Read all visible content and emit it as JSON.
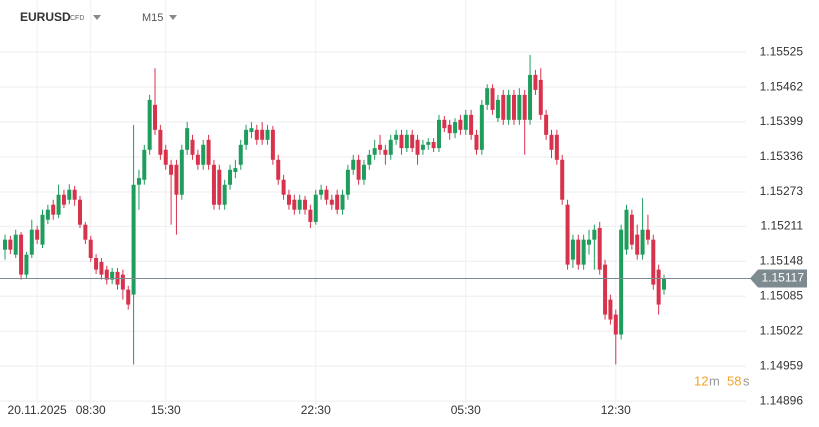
{
  "header": {
    "symbol": "EURUSD",
    "instrument": "CFD",
    "timeframe": "M15"
  },
  "countdown": [
    "12",
    "m",
    "58",
    "s"
  ],
  "chart_data": {
    "type": "candlestick",
    "categories": [
      null,
      null,
      null,
      null,
      null,
      null,
      "20.11.2025",
      null,
      null,
      null,
      null,
      null,
      null,
      null,
      null,
      null,
      "08:30",
      null,
      null,
      null,
      null,
      null,
      null,
      null,
      null,
      null,
      null,
      null,
      null,
      null,
      "15:30",
      null,
      null,
      null,
      null,
      null,
      null,
      null,
      null,
      null,
      null,
      null,
      null,
      null,
      null,
      null,
      null,
      null,
      null,
      null,
      null,
      null,
      null,
      null,
      null,
      null,
      null,
      null,
      "22:30",
      null,
      null,
      null,
      null,
      null,
      null,
      null,
      null,
      null,
      null,
      null,
      null,
      null,
      null,
      null,
      null,
      null,
      null,
      null,
      null,
      null,
      null,
      null,
      null,
      null,
      null,
      null,
      "05:30",
      null,
      null,
      null,
      null,
      null,
      null,
      null,
      null,
      null,
      null,
      null,
      null,
      null,
      null,
      null,
      null,
      null,
      null,
      null,
      null,
      null,
      null,
      null,
      null,
      null,
      null,
      null,
      "12:30",
      null,
      null,
      null,
      null,
      null,
      null,
      null,
      null,
      null
    ],
    "open": [
      1.15169,
      1.15187,
      1.1516,
      1.15196,
      1.15124,
      1.1516,
      1.15205,
      1.15178,
      1.15223,
      1.1525,
      1.15232,
      1.15268,
      1.15259,
      1.15277,
      1.15259,
      1.15214,
      1.15187,
      1.15154,
      1.15147,
      1.15133,
      1.15115,
      1.15129,
      1.15124,
      1.15097,
      1.15088,
      1.15286,
      1.15295,
      1.15349,
      1.1543,
      1.15385,
      1.15349,
      1.15322,
      1.15322,
      1.15268,
      1.15349,
      1.15367,
      1.1534,
      1.15322,
      1.15367,
      1.15322,
      1.15313,
      1.1525,
      1.15286,
      1.15309,
      1.15322,
      1.15358,
      1.15381,
      1.15385,
      1.15385,
      1.15367,
      1.15385,
      1.15331,
      1.15295,
      1.15268,
      1.15259,
      1.15241,
      1.15259,
      1.15241,
      1.15219,
      1.15268,
      1.15277,
      1.15259,
      1.15268,
      1.15241,
      1.15268,
      1.15313,
      1.15331,
      1.15295,
      1.15322,
      1.1534,
      1.15358,
      1.15349,
      1.1534,
      1.15367,
      1.15376,
      1.15352,
      1.15376,
      1.15367,
      1.15349,
      1.15358,
      1.15363,
      1.15352,
      1.15403,
      1.15394,
      1.15379,
      1.15403,
      1.15385,
      1.15412,
      1.15376,
      1.15349,
      1.1543,
      1.1546,
      1.15406,
      1.15448,
      1.15403,
      1.15448,
      1.15403,
      1.15448,
      1.15403,
      1.15484,
      1.15475,
      1.15412,
      1.15376,
      1.15376,
      1.15331,
      1.1525,
      1.15151,
      1.15187,
      1.15142,
      1.15178,
      1.15187,
      1.15208,
      1.15142,
      1.15079,
      1.15052,
      1.15016,
      1.15169,
      1.15232,
      1.15196,
      1.1516,
      1.15205,
      1.15187,
      1.15133,
      1.15097
    ],
    "high": [
      1.15196,
      1.15194,
      1.15205,
      1.15201,
      1.15165,
      1.15223,
      1.15212,
      1.15241,
      1.1525,
      1.15259,
      1.15286,
      1.15277,
      1.15287,
      1.15284,
      1.15266,
      1.15219,
      1.15194,
      1.15161,
      1.15154,
      1.1514,
      1.15136,
      1.15136,
      1.15133,
      1.15104,
      1.15394,
      1.15313,
      1.15358,
      1.15448,
      1.15496,
      1.15394,
      1.15358,
      1.15331,
      1.15331,
      1.15358,
      1.15399,
      1.15376,
      1.15349,
      1.15367,
      1.15376,
      1.15331,
      1.15322,
      1.15295,
      1.15322,
      1.15331,
      1.15367,
      1.15394,
      1.15399,
      1.15394,
      1.15399,
      1.15394,
      1.15392,
      1.1534,
      1.15304,
      1.15277,
      1.15268,
      1.15268,
      1.15266,
      1.1525,
      1.15277,
      1.15286,
      1.15284,
      1.15268,
      1.15277,
      1.15277,
      1.15322,
      1.1534,
      1.1534,
      1.15331,
      1.15349,
      1.15367,
      1.15376,
      1.15358,
      1.15376,
      1.15385,
      1.15385,
      1.15385,
      1.15385,
      1.15376,
      1.15367,
      1.1537,
      1.1537,
      1.15412,
      1.1541,
      1.15403,
      1.15406,
      1.15412,
      1.15421,
      1.15421,
      1.15385,
      1.15439,
      1.15467,
      1.15467,
      1.15448,
      1.15457,
      1.15457,
      1.15457,
      1.1546,
      1.15457,
      1.1552,
      1.15493,
      1.15496,
      1.15421,
      1.15385,
      1.15385,
      1.1534,
      1.15259,
      1.15196,
      1.15196,
      1.15196,
      1.15205,
      1.15214,
      1.15219,
      1.15151,
      1.15088,
      1.15061,
      1.15214,
      1.1525,
      1.15241,
      1.15214,
      1.15262,
      1.15232,
      1.15196,
      1.15142,
      1.15124
    ],
    "low": [
      1.15151,
      1.15161,
      1.15154,
      1.15115,
      1.15118,
      1.15154,
      1.15179,
      1.15172,
      1.15215,
      1.15223,
      1.15226,
      1.15244,
      1.15251,
      1.15248,
      1.15208,
      1.15179,
      1.15147,
      1.15125,
      1.15115,
      1.15106,
      1.15107,
      1.15097,
      1.15079,
      1.15061,
      1.14962,
      1.15241,
      1.15286,
      1.1534,
      1.15376,
      1.15331,
      1.15313,
      1.15214,
      1.15196,
      1.15259,
      1.1534,
      1.15331,
      1.15313,
      1.15313,
      1.15313,
      1.15241,
      1.15241,
      1.15241,
      1.15277,
      1.15298,
      1.15313,
      1.15349,
      1.1537,
      1.15358,
      1.15358,
      1.15358,
      1.15322,
      1.15286,
      1.15259,
      1.15241,
      1.15232,
      1.15233,
      1.15232,
      1.15208,
      1.15214,
      1.15259,
      1.1525,
      1.15241,
      1.15233,
      1.15232,
      1.15259,
      1.15304,
      1.15286,
      1.15286,
      1.15313,
      1.15331,
      1.1534,
      1.15322,
      1.15331,
      1.15358,
      1.1534,
      1.15345,
      1.15345,
      1.15322,
      1.1534,
      1.15349,
      1.15345,
      1.15345,
      1.15381,
      1.15367,
      1.1537,
      1.15376,
      1.15376,
      1.15367,
      1.1534,
      1.1534,
      1.15421,
      1.15412,
      1.15399,
      1.15394,
      1.15394,
      1.15394,
      1.15394,
      1.1534,
      1.15394,
      1.15448,
      1.15403,
      1.15367,
      1.15334,
      1.15322,
      1.1525,
      1.15133,
      1.15136,
      1.15133,
      1.15133,
      1.1516,
      1.15133,
      1.15124,
      1.15043,
      1.15034,
      1.14962,
      1.15007,
      1.1516,
      1.15169,
      1.15151,
      1.15151,
      1.15178,
      1.15097,
      1.15052,
      1.15088
    ],
    "close": [
      1.15187,
      1.15169,
      1.15196,
      1.15124,
      1.1516,
      1.15205,
      1.15187,
      1.15232,
      1.15241,
      1.15232,
      1.15268,
      1.1525,
      1.15277,
      1.15259,
      1.15214,
      1.15187,
      1.15154,
      1.15133,
      1.15124,
      1.15115,
      1.15129,
      1.15106,
      1.15097,
      1.1507,
      1.15286,
      1.15298,
      1.15349,
      1.15439,
      1.15385,
      1.1534,
      1.15322,
      1.15304,
      1.15268,
      1.15349,
      1.15388,
      1.1534,
      1.15322,
      1.15358,
      1.15322,
      1.1525,
      1.1525,
      1.15286,
      1.15313,
      1.15316,
      1.15358,
      1.15385,
      1.15388,
      1.15367,
      1.15367,
      1.15385,
      1.15331,
      1.15295,
      1.15268,
      1.1525,
      1.15241,
      1.15259,
      1.15241,
      1.15219,
      1.15268,
      1.15277,
      1.15259,
      1.1525,
      1.15241,
      1.15268,
      1.15313,
      1.15331,
      1.15295,
      1.15322,
      1.1534,
      1.15352,
      1.15349,
      1.1534,
      1.15367,
      1.15376,
      1.15352,
      1.15376,
      1.15352,
      1.1534,
      1.15358,
      1.15363,
      1.15352,
      1.15403,
      1.15388,
      1.15379,
      1.15399,
      1.15385,
      1.15412,
      1.15376,
      1.15349,
      1.1543,
      1.1546,
      1.15421,
      1.15439,
      1.15403,
      1.15448,
      1.15403,
      1.15448,
      1.15403,
      1.15484,
      1.15457,
      1.15412,
      1.15376,
      1.15349,
      1.15331,
      1.15259,
      1.15142,
      1.15187,
      1.15142,
      1.15187,
      1.15187,
      1.15205,
      1.15133,
      1.15052,
      1.15043,
      1.15016,
      1.15205,
      1.15241,
      1.15178,
      1.1516,
      1.15205,
      1.15187,
      1.15106,
      1.1507,
      1.15117
    ],
    "up_color": "#1f9d5c",
    "down_color": "#d8334d",
    "ylim": [
      1.14889,
      1.15619
    ],
    "yticks": [
      1.15525,
      1.15462,
      1.15399,
      1.15336,
      1.15273,
      1.15211,
      1.15148,
      1.15085,
      1.15022,
      1.14959,
      1.14896
    ],
    "last_price": 1.15117,
    "last_price_color": "#7d8b90",
    "grid": true
  }
}
